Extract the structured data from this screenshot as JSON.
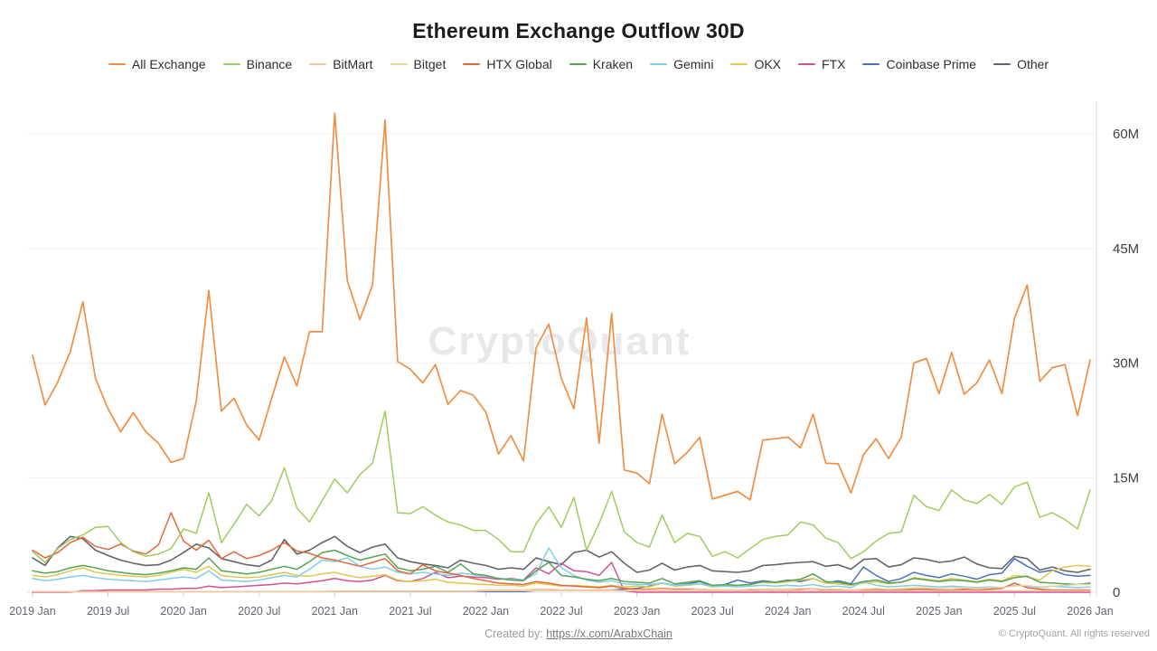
{
  "header": {
    "title": "Ethereum Exchange Outflow 30D"
  },
  "watermark": "CryptoQuant",
  "footer": {
    "created_by_label": "Created by:",
    "created_by_link": "https://x.com/ArabxChain",
    "copyright": "© CryptoQuant. All rights reserved"
  },
  "chart_data": {
    "type": "line",
    "title": "Ethereum Exchange Outflow 30D",
    "interval": "monthly",
    "x_start": "2019-01",
    "x_end": "2026-01",
    "n_points": 85,
    "x_tick_every_n_points": 6,
    "x_tick_labels": [
      "2019 Jan",
      "2019 Jul",
      "2020 Jan",
      "2020 Jul",
      "2021 Jan",
      "2021 Jul",
      "2022 Jan",
      "2022 Jul",
      "2023 Jan",
      "2023 Jul",
      "2024 Jan",
      "2024 Jul",
      "2025 Jan",
      "2025 Jul",
      "2026 Jan"
    ],
    "y_tick_values": [
      0,
      15,
      30,
      45,
      60
    ],
    "y_tick_labels": [
      "0",
      "15M",
      "30M",
      "45M",
      "60M"
    ],
    "ylim": [
      0,
      64.5
    ],
    "grid": "horizontal",
    "legend_position": "top",
    "ylabel": "",
    "xlabel": "",
    "series": [
      {
        "name": "All Exchange",
        "color": "#EF8E44",
        "width": 1.7,
        "values": [
          31,
          24.5,
          27.5,
          31.5,
          38,
          28,
          24,
          21,
          23.5,
          21,
          19.5,
          17,
          17.5,
          25,
          39.5,
          23.7,
          25.4,
          21.9,
          19.9,
          25.4,
          30.8,
          27,
          34.1,
          34.1,
          62.7,
          40.8,
          35.7,
          40.2,
          61.8,
          30.2,
          29.2,
          27.4,
          29.8,
          24.6,
          26.4,
          25.8,
          23.6,
          18.1,
          20.5,
          17.2,
          32,
          35.1,
          28,
          24,
          35.9,
          19.5,
          36.5,
          16,
          15.6,
          14.2,
          23.3,
          16.8,
          18.3,
          20.3,
          12.2,
          12.7,
          13.2,
          12.1,
          19.9,
          20.1,
          20.3,
          18.9,
          23.3,
          16.9,
          16.8,
          13,
          18,
          20.1,
          17.5,
          20.3,
          30,
          30.6,
          26,
          31.4,
          25.9,
          27.4,
          30.4,
          26,
          35.9,
          40.2,
          27.6,
          29.4,
          29.8,
          23.1,
          30.4
        ]
      },
      {
        "name": "Binance",
        "color": "#A0CC5F",
        "width": 1.5,
        "values": [
          5.3,
          3.9,
          5.7,
          6.9,
          7.5,
          8.5,
          8.6,
          6.5,
          5.3,
          4.7,
          5,
          5.7,
          8.3,
          7.7,
          13,
          6.5,
          8.9,
          11.5,
          10,
          12,
          16.3,
          11,
          9.2,
          12,
          14.8,
          13,
          15.4,
          16.9,
          23.7,
          10.4,
          10.3,
          11.2,
          10.1,
          9.2,
          8.8,
          8.1,
          8.1,
          6.9,
          5.3,
          5.3,
          9,
          11.2,
          8.5,
          12.4,
          5.5,
          9,
          13.2,
          7.9,
          6.5,
          5.9,
          10.1,
          6.5,
          7.7,
          7.3,
          4.7,
          5.3,
          4.5,
          5.7,
          6.9,
          7.3,
          7.5,
          9.2,
          8.8,
          7.1,
          6.5,
          4.4,
          5.3,
          6.7,
          7.7,
          7.9,
          12.7,
          11.2,
          10.7,
          13.4,
          12.1,
          11.6,
          12.8,
          11.5,
          13.8,
          14.4,
          9.8,
          10.4,
          9.5,
          8.3,
          13.4
        ]
      },
      {
        "name": "BitMart",
        "color": "#F5C39C",
        "width": 1.4,
        "values": [
          0.1,
          0.1,
          0.1,
          0.1,
          0.1,
          0.1,
          0.1,
          0.1,
          0.1,
          0.1,
          0.1,
          0.1,
          0.1,
          0.1,
          0.1,
          0.1,
          0.1,
          0.1,
          0.1,
          0.1,
          0.1,
          0.1,
          0.1,
          0.1,
          0.15,
          0.15,
          0.15,
          0.15,
          0.15,
          0.15,
          0.15,
          0.15,
          0.15,
          0.15,
          0.15,
          0.15,
          0.3,
          0.3,
          0.3,
          0.3,
          0.4,
          0.4,
          0.3,
          0.3,
          0.3,
          0.3,
          0.3,
          0.2,
          0.2,
          0.2,
          0.2,
          0.2,
          0.2,
          0.2,
          0.2,
          0.2,
          0.2,
          0.2,
          0.2,
          0.2,
          0.2,
          0.2,
          0.2,
          0.2,
          0.2,
          0.2,
          0.2,
          0.2,
          0.2,
          0.2,
          0.2,
          0.2,
          0.2,
          0.2,
          0.2,
          0.2,
          0.2,
          0.2,
          0.2,
          0.2,
          0.2,
          0.2,
          0.2,
          0.2,
          0.2
        ]
      },
      {
        "name": "Bitget",
        "color": "#EDD49E",
        "width": 1.4,
        "values": [
          0.05,
          0.05,
          0.05,
          0.05,
          0.05,
          0.05,
          0.05,
          0.05,
          0.05,
          0.05,
          0.05,
          0.05,
          0.05,
          0.05,
          0.05,
          0.05,
          0.05,
          0.05,
          0.05,
          0.05,
          0.05,
          0.05,
          0.05,
          0.05,
          0.1,
          0.1,
          0.1,
          0.1,
          0.1,
          0.1,
          0.1,
          0.1,
          0.1,
          0.1,
          0.1,
          0.1,
          0.2,
          0.2,
          0.2,
          0.2,
          0.2,
          0.2,
          0.2,
          0.2,
          0.2,
          0.2,
          0.2,
          0.2,
          0.3,
          0.3,
          0.4,
          0.3,
          0.3,
          0.4,
          0.3,
          0.3,
          0.3,
          0.4,
          0.4,
          0.4,
          0.4,
          0.5,
          0.5,
          0.4,
          0.4,
          0.3,
          0.4,
          0.5,
          0.4,
          0.5,
          0.6,
          0.6,
          0.5,
          0.6,
          0.6,
          0.5,
          0.6,
          0.6,
          0.8,
          0.9,
          0.7,
          0.8,
          0.9,
          1,
          1
        ]
      },
      {
        "name": "HTX Global",
        "color": "#E2683C",
        "width": 1.5,
        "values": [
          5.5,
          4.5,
          5.2,
          6.5,
          7.2,
          6,
          5.6,
          6.3,
          5.4,
          5,
          6.2,
          10.4,
          6.7,
          5.5,
          6.8,
          4.4,
          5.3,
          4.4,
          4.8,
          5.5,
          6.5,
          5.4,
          5.1,
          4.5,
          4.2,
          3.8,
          3.4,
          3.9,
          4.4,
          2.8,
          2.4,
          3.6,
          2.8,
          2.5,
          2.2,
          1.8,
          1.5,
          1.2,
          1.1,
          1,
          1.4,
          1.2,
          0.9,
          0.8,
          0.7,
          0.6,
          0.8,
          0.5,
          0.4,
          0.4,
          0.5,
          0.4,
          0.4,
          0.4,
          0.3,
          0.3,
          0.3,
          0.3,
          0.4,
          0.4,
          0.4,
          0.4,
          0.5,
          0.3,
          0.3,
          0.3,
          0.3,
          0.4,
          0.3,
          0.3,
          0.4,
          0.4,
          0.3,
          0.3,
          0.4,
          0.3,
          0.4,
          0.5,
          1.2,
          0.6,
          0.4,
          0.3,
          0.3,
          0.3,
          0.3
        ]
      },
      {
        "name": "Kraken",
        "color": "#55A355",
        "width": 1.5,
        "values": [
          2.8,
          2.5,
          2.7,
          3.2,
          3.5,
          3.2,
          2.8,
          2.6,
          2.4,
          2.3,
          2.5,
          2.8,
          3.2,
          3,
          4.5,
          2.8,
          2.6,
          2.4,
          2.6,
          3,
          3.4,
          3,
          4,
          5.2,
          5.5,
          4.8,
          4.2,
          4.6,
          5,
          3.2,
          2.8,
          3,
          3.4,
          2.6,
          3.7,
          2.4,
          2.2,
          1.8,
          1.6,
          1.5,
          2.8,
          3.9,
          2.2,
          2,
          1.7,
          1.5,
          1.8,
          1.4,
          1.3,
          1.2,
          1.8,
          1.1,
          1.3,
          1.5,
          0.9,
          1,
          0.9,
          1,
          1.4,
          1.3,
          1.5,
          1.7,
          2.4,
          1.4,
          1.3,
          1,
          1.4,
          1.6,
          1.2,
          1.3,
          1.8,
          1.6,
          1.4,
          1.6,
          1.5,
          1.3,
          1.6,
          1.4,
          1.9,
          2.1,
          1.3,
          1.2,
          1.1,
          1,
          1.2
        ]
      },
      {
        "name": "Gemini",
        "color": "#7FCEE9",
        "width": 1.5,
        "values": [
          1.8,
          1.5,
          1.7,
          2,
          2.2,
          1.9,
          1.7,
          1.6,
          1.5,
          1.4,
          1.6,
          1.8,
          2,
          1.8,
          2.8,
          1.6,
          1.5,
          1.4,
          1.6,
          1.9,
          2.2,
          2,
          3,
          4.2,
          4,
          4.5,
          3.4,
          3,
          3.3,
          2.6,
          2.4,
          2.6,
          2.4,
          2.2,
          2.5,
          2.3,
          2.1,
          1.8,
          1.7,
          1.6,
          2.4,
          5.8,
          3.2,
          2.2,
          1.6,
          1.3,
          1.5,
          1.1,
          1,
          1,
          1.2,
          0.9,
          1,
          1.1,
          0.8,
          0.8,
          0.7,
          0.8,
          0.9,
          0.8,
          0.9,
          0.8,
          1,
          0.7,
          0.8,
          0.6,
          1.4,
          0.9,
          0.7,
          0.8,
          0.9,
          0.8,
          0.7,
          0.8,
          0.7,
          0.6,
          0.7,
          0.6,
          0.9,
          0.8,
          0.6,
          0.8,
          0.7,
          0.6,
          0.7
        ]
      },
      {
        "name": "OKX",
        "color": "#E4C64C",
        "width": 1.5,
        "values": [
          2.2,
          2,
          2.3,
          2.8,
          3.2,
          2.6,
          2.4,
          2.2,
          2.1,
          2,
          2.2,
          2.6,
          3,
          2.6,
          3.4,
          2.2,
          2,
          1.9,
          2,
          2.3,
          2.6,
          2.2,
          2.1,
          2.4,
          2.6,
          2.2,
          1.9,
          2.1,
          2.3,
          1.6,
          1.4,
          1.5,
          1.7,
          1.3,
          1.2,
          1.1,
          1,
          0.9,
          0.9,
          0.8,
          1.2,
          1,
          0.8,
          0.9,
          0.8,
          0.7,
          0.9,
          0.7,
          0.8,
          0.7,
          1.2,
          0.8,
          0.9,
          1.1,
          0.7,
          0.8,
          0.9,
          1,
          1.3,
          1.2,
          1.4,
          1.6,
          1.8,
          1.2,
          1.1,
          0.9,
          1.2,
          1.4,
          1.1,
          1.3,
          1.9,
          1.7,
          1.5,
          1.8,
          1.6,
          1.4,
          1.7,
          1.5,
          2.2,
          2,
          1.6,
          2.8,
          3.3,
          3.5,
          3.4
        ]
      },
      {
        "name": "FTX",
        "color": "#D44F94",
        "width": 1.5,
        "values": [
          0,
          0,
          0,
          0,
          0.2,
          0.2,
          0.3,
          0.3,
          0.3,
          0.3,
          0.4,
          0.4,
          0.5,
          0.5,
          0.8,
          0.6,
          0.7,
          0.8,
          0.9,
          1,
          1.2,
          1.1,
          1.3,
          1.5,
          1.8,
          1.5,
          1.4,
          1.6,
          2.2,
          1.5,
          1.4,
          1.8,
          2.6,
          1.9,
          2.1,
          2,
          1.9,
          1.7,
          1.8,
          1.6,
          3.2,
          2.4,
          3.8,
          2.8,
          2.7,
          2.2,
          3.9,
          0.2,
          0,
          0,
          0,
          0,
          0,
          0,
          0,
          0,
          0,
          0,
          0,
          0,
          0,
          0,
          0,
          0,
          0,
          0,
          0,
          0,
          0,
          0,
          0,
          0,
          0,
          0,
          0,
          0,
          0,
          0,
          0,
          0,
          0,
          0,
          0,
          0,
          0
        ]
      },
      {
        "name": "Coinbase Prime",
        "color": "#4B70BE",
        "width": 1.5,
        "values": [
          0.1,
          0.1,
          0.1,
          0.1,
          0.1,
          0.1,
          0.1,
          0.1,
          0.1,
          0.1,
          0.1,
          0.1,
          0.1,
          0.1,
          0.1,
          0.1,
          0.1,
          0.1,
          0.1,
          0.1,
          0.1,
          0.1,
          0.1,
          0.1,
          0.1,
          0.1,
          0.1,
          0.1,
          0.1,
          0.1,
          0.1,
          0.1,
          0.1,
          0.1,
          0.1,
          0.1,
          0.1,
          0.1,
          0.1,
          0.1,
          0.2,
          0.2,
          0.2,
          0.2,
          0.2,
          0.3,
          0.3,
          0.4,
          0.5,
          0.8,
          1.2,
          0.9,
          1.1,
          1.4,
          0.8,
          1,
          1.6,
          1.2,
          1.5,
          1.3,
          1.6,
          1.4,
          1.8,
          1.2,
          1.5,
          1.1,
          3.3,
          2.2,
          1.4,
          1.8,
          2.6,
          2.2,
          1.9,
          2.4,
          2.1,
          1.7,
          2.3,
          2.5,
          4.4,
          3.4,
          2.6,
          2.9,
          2.3,
          2.1,
          2.2
        ]
      },
      {
        "name": "Other",
        "color": "#62656E",
        "width": 1.6,
        "values": [
          4.5,
          3.5,
          5.8,
          7.3,
          7,
          5.5,
          4.8,
          4.2,
          3.8,
          3.5,
          3.6,
          4.2,
          5.2,
          6.3,
          5.8,
          4.4,
          4,
          3.6,
          3.4,
          4.2,
          6.9,
          5,
          5.5,
          6.5,
          7.3,
          6,
          5.2,
          5.9,
          6.3,
          4.5,
          4,
          3.7,
          3.5,
          3.2,
          4.2,
          3.8,
          3.5,
          3,
          3.2,
          3,
          4.5,
          4,
          3.6,
          5.2,
          5.5,
          4.6,
          5.3,
          3.8,
          2.6,
          2.9,
          3.8,
          2.9,
          3.3,
          3.5,
          2.8,
          2.7,
          2.6,
          2.8,
          3.5,
          3.6,
          3.8,
          3.9,
          4,
          3.4,
          3.6,
          3,
          4.3,
          4.4,
          3.3,
          3.6,
          4.5,
          4.3,
          3.9,
          4.1,
          4.6,
          3.7,
          3.2,
          3.1,
          4.7,
          4.4,
          2.9,
          3.3,
          2.8,
          2.6,
          3
        ]
      }
    ]
  }
}
